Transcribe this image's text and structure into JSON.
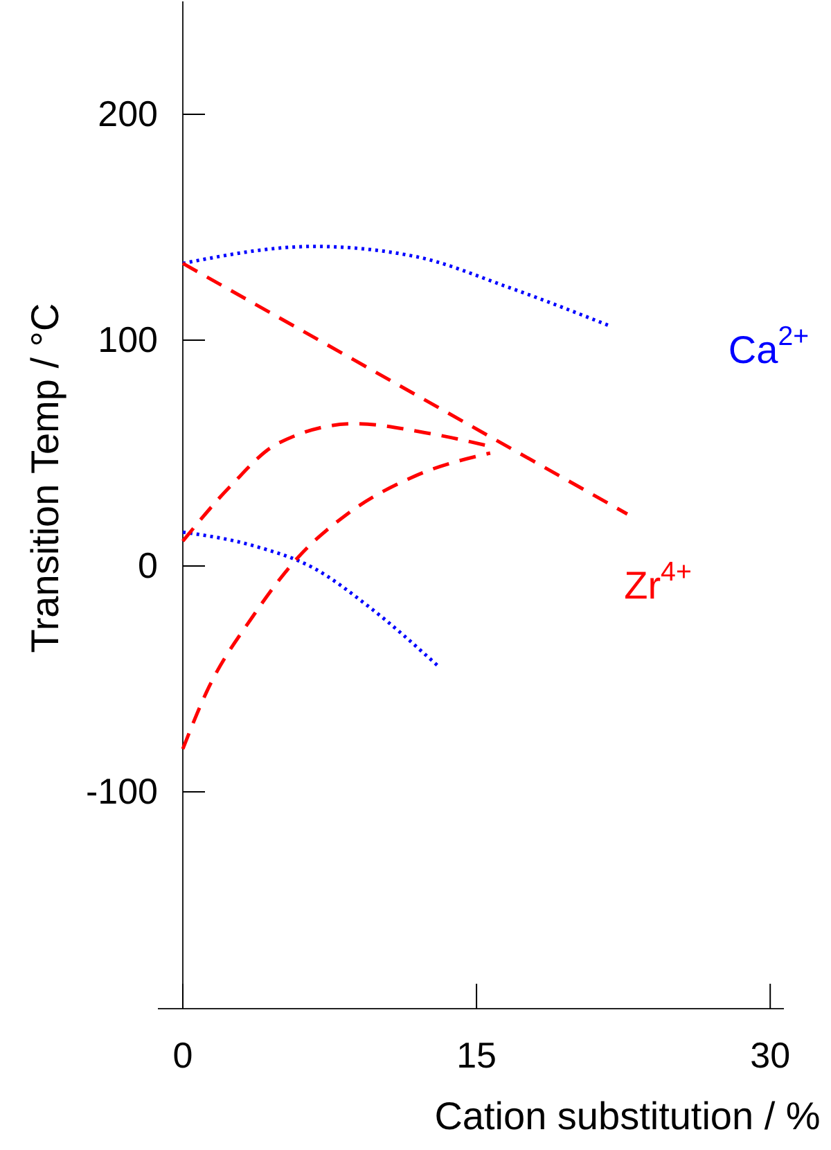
{
  "chart_data": {
    "type": "line",
    "xlabel": "Cation substitution / %",
    "ylabel": "Transition Temp / °C",
    "xlim": [
      0,
      30.7
    ],
    "ylim": [
      -196,
      250
    ],
    "xticks": [
      0,
      15,
      30
    ],
    "yticks": [
      -100,
      0,
      100,
      200
    ],
    "grid": false,
    "marker": "none",
    "series": [
      {
        "color": "#0000ff",
        "line_style": "dotted",
        "x": [
          0,
          6.7,
          11.9,
          16.6,
          21.9
        ],
        "values": [
          134,
          141.5,
          137,
          123.5,
          106
        ]
      },
      {
        "color": "#0000ff",
        "line_style": "dotted",
        "x": [
          0,
          3.6,
          6.7,
          9.5,
          13
        ],
        "values": [
          15,
          9,
          -1,
          -18,
          -44
        ]
      },
      {
        "color": "#ff0000",
        "line_style": "dashed",
        "x": [
          0,
          22.7
        ],
        "values": [
          134,
          23
        ]
      },
      {
        "color": "#ff0000",
        "line_style": "dashed",
        "x": [
          0,
          2.5,
          4.8,
          8.8,
          12.4,
          15.7
        ],
        "values": [
          11,
          36,
          54,
          63,
          59,
          53
        ]
      },
      {
        "color": "#ff0000",
        "line_style": "dashed",
        "x": [
          0,
          1.2,
          3.6,
          5.8,
          8.4,
          11.9,
          15.7
        ],
        "values": [
          -81,
          -56,
          -22,
          3,
          23,
          40,
          50
        ]
      }
    ],
    "annotations": [
      "Ca$^{2+}$",
      "Zr$^{4+}$"
    ]
  }
}
